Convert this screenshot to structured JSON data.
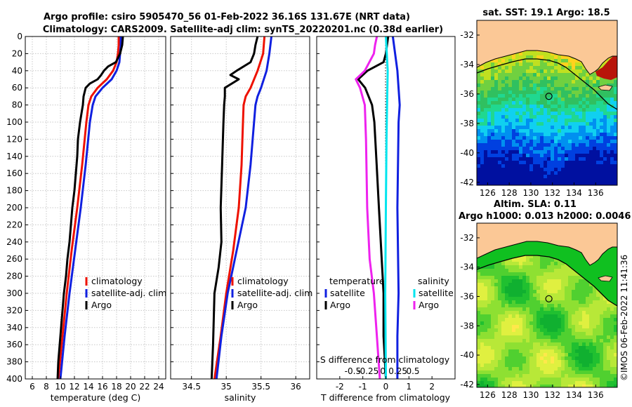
{
  "figure": {
    "title_line1": "Argo profile: csiro 5905470_56 01-Feb-2022 36.16S 131.67E (NRT data)",
    "title_line2": "Climatology: CARS2009. Satellite-adj clim: synTS_20220201.nc (0.38d earlier)",
    "timestamp": "©IMOS 06-Feb-2022 11:41:36"
  },
  "colors": {
    "climatology": "#ee1100",
    "satellite": "#1020e0",
    "argo": "#000000",
    "salinity_sat": "#00e5ee",
    "salinity_argo": "#ee22ee",
    "land": "#fbc896"
  },
  "chart_data": [
    {
      "type": "line",
      "name": "temperature-profile",
      "xlabel": "temperature (deg C)",
      "ylabel": "depth",
      "xlim": [
        5,
        25
      ],
      "ylim": [
        400,
        0
      ],
      "xticks": [
        "6",
        "8",
        "10",
        "12",
        "14",
        "16",
        "18",
        "20",
        "22",
        "24"
      ],
      "yticks": [
        "0",
        "20",
        "40",
        "60",
        "80",
        "100",
        "120",
        "140",
        "160",
        "180",
        "200",
        "220",
        "240",
        "260",
        "280",
        "300",
        "320",
        "340",
        "360",
        "380",
        "400"
      ],
      "legend": [
        "climatology",
        "satellite-adj. clim",
        "Argo"
      ],
      "series": [
        {
          "name": "climatology",
          "color": "#ee1100",
          "depth": [
            0,
            10,
            20,
            30,
            40,
            50,
            60,
            70,
            80,
            100,
            150,
            200,
            250,
            300,
            350,
            400
          ],
          "values": [
            18.3,
            18.3,
            18.2,
            18.0,
            17.5,
            16.6,
            15.3,
            14.4,
            14.0,
            13.7,
            13.1,
            12.4,
            11.6,
            10.9,
            10.3,
            9.7
          ]
        },
        {
          "name": "satellite-adj. clim",
          "color": "#1020e0",
          "depth": [
            0,
            10,
            20,
            30,
            40,
            50,
            60,
            70,
            80,
            100,
            150,
            200,
            250,
            300,
            350,
            400
          ],
          "values": [
            18.6,
            18.6,
            18.5,
            18.4,
            18.0,
            17.3,
            16.0,
            15.0,
            14.6,
            14.2,
            13.6,
            12.9,
            12.1,
            11.3,
            10.6,
            10.0
          ]
        },
        {
          "name": "Argo",
          "color": "#000000",
          "depth": [
            0,
            10,
            20,
            30,
            35,
            40,
            45,
            50,
            55,
            60,
            70,
            80,
            90,
            100,
            120,
            140,
            160,
            180,
            200,
            220,
            240,
            260,
            280,
            300,
            320,
            340,
            360,
            380,
            400
          ],
          "values": [
            18.9,
            18.8,
            18.5,
            17.9,
            16.8,
            16.2,
            15.8,
            15.3,
            14.2,
            13.6,
            13.3,
            13.2,
            13.0,
            12.8,
            12.5,
            12.4,
            12.2,
            12.0,
            11.7,
            11.5,
            11.3,
            11.0,
            10.8,
            10.5,
            10.3,
            10.1,
            9.9,
            9.7,
            9.6
          ]
        }
      ]
    },
    {
      "type": "line",
      "name": "salinity-profile",
      "xlabel": "salinity",
      "xlim": [
        34.2,
        36.2
      ],
      "ylim": [
        400,
        0
      ],
      "xticks": [
        "34.5",
        "35",
        "35.5",
        "36"
      ],
      "legend": [
        "climatology",
        "satellite-adj. clim",
        "Argo"
      ],
      "series": [
        {
          "name": "climatology",
          "color": "#ee1100",
          "depth": [
            0,
            20,
            40,
            60,
            70,
            80,
            100,
            150,
            200,
            250,
            300,
            350,
            400
          ],
          "values": [
            35.55,
            35.53,
            35.45,
            35.35,
            35.28,
            35.25,
            35.24,
            35.22,
            35.18,
            35.1,
            35.0,
            34.92,
            34.83
          ]
        },
        {
          "name": "satellite-adj. clim",
          "color": "#1020e0",
          "depth": [
            0,
            20,
            40,
            60,
            70,
            80,
            100,
            150,
            200,
            250,
            300,
            350,
            400
          ],
          "values": [
            35.65,
            35.62,
            35.58,
            35.5,
            35.45,
            35.42,
            35.4,
            35.35,
            35.28,
            35.15,
            35.02,
            34.93,
            34.86
          ]
        },
        {
          "name": "Argo",
          "color": "#000000",
          "depth": [
            0,
            10,
            20,
            30,
            40,
            45,
            50,
            60,
            70,
            80,
            100,
            150,
            200,
            240,
            270,
            300,
            330,
            360,
            400
          ],
          "values": [
            35.45,
            35.42,
            35.4,
            35.35,
            35.15,
            35.06,
            35.18,
            34.98,
            34.98,
            34.97,
            34.96,
            34.94,
            34.92,
            34.93,
            34.89,
            34.83,
            34.82,
            34.81,
            34.79
          ]
        }
      ]
    },
    {
      "type": "line",
      "name": "difference-profile",
      "xlabel": "T difference from climatology",
      "xlabel_top": "S difference from climatology",
      "xlim": [
        -3,
        3
      ],
      "ylim": [
        400,
        0
      ],
      "xticks": [
        "-2",
        "-1",
        "0",
        "1",
        "2"
      ],
      "s_xlim": [
        -1.1,
        1.2
      ],
      "s_xticks": [
        "-0.5",
        "-0.25",
        "0",
        "0.25",
        "0.5"
      ],
      "legend_temperature": [
        "temperature",
        "satellite",
        "Argo"
      ],
      "legend_salinity": [
        "salinity",
        "satellite",
        "Argo"
      ],
      "series": [
        {
          "name": "temperature satellite",
          "color": "#1020e0",
          "depth": [
            0,
            40,
            80,
            100,
            200,
            300,
            350,
            400
          ],
          "values": [
            0.3,
            0.5,
            0.6,
            0.55,
            0.5,
            0.55,
            0.5,
            0.5
          ]
        },
        {
          "name": "temperature Argo",
          "color": "#000000",
          "depth": [
            0,
            10,
            20,
            30,
            40,
            50,
            60,
            80,
            100,
            150,
            200,
            250,
            300,
            350,
            400
          ],
          "values": [
            0.1,
            0.05,
            0.0,
            -0.1,
            -0.8,
            -1.2,
            -0.9,
            -0.6,
            -0.5,
            -0.4,
            -0.3,
            -0.2,
            -0.1,
            -0.1,
            0.0
          ]
        },
        {
          "name": "salinity satellite",
          "color": "#00e5ee",
          "depth": [
            0,
            40,
            80,
            120,
            200,
            300,
            400
          ],
          "values": [
            0.05,
            0.08,
            0.07,
            0.06,
            0.05,
            0.04,
            0.05
          ]
        },
        {
          "name": "salinity Argo",
          "color": "#ee22ee",
          "depth": [
            0,
            10,
            20,
            40,
            50,
            60,
            80,
            120,
            200,
            260,
            300,
            350,
            400
          ],
          "values": [
            -0.1,
            -0.13,
            -0.15,
            -0.3,
            -0.45,
            -0.38,
            -0.3,
            -0.28,
            -0.26,
            -0.22,
            -0.15,
            -0.1,
            -0.05
          ]
        }
      ]
    },
    {
      "type": "heatmap",
      "name": "sst-map",
      "title": "sat. SST: 19.1 Argo: 18.5",
      "xlim": [
        125,
        138
      ],
      "ylim": [
        -42.2,
        -31
      ],
      "xticks": [
        "126",
        "128",
        "130",
        "132",
        "134",
        "136"
      ],
      "yticks": [
        "-32",
        "-34",
        "-36",
        "-38",
        "-40",
        "-42"
      ],
      "argo_position": [
        131.67,
        -36.16
      ]
    },
    {
      "type": "heatmap",
      "name": "sla-map",
      "title": "Altim. SLA: 0.11",
      "subtitle": "Argo h1000: 0.013 h2000: 0.0046",
      "xlim": [
        125,
        138
      ],
      "ylim": [
        -42.2,
        -31
      ],
      "xticks": [
        "126",
        "128",
        "130",
        "132",
        "134",
        "136"
      ],
      "yticks": [
        "-32",
        "-34",
        "-36",
        "-38",
        "-40",
        "-42"
      ],
      "argo_position": [
        131.67,
        -36.16
      ]
    }
  ]
}
